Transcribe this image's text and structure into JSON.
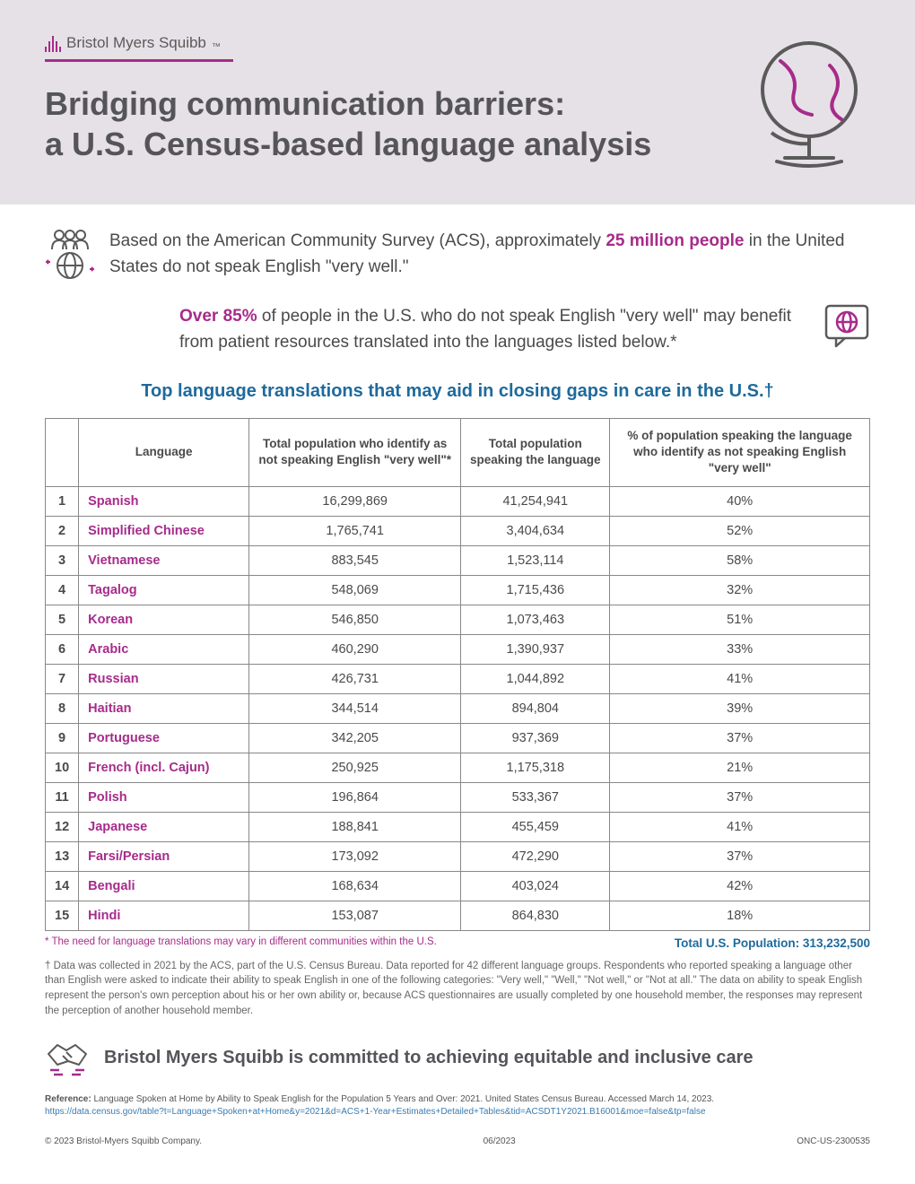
{
  "brand": {
    "name": "Bristol Myers Squibb"
  },
  "title_line1": "Bridging communication barriers:",
  "title_line2": "a U.S. Census-based language analysis",
  "stat1": {
    "pre": "Based on the American Community Survey (ACS), approximately ",
    "hl": "25 million people",
    "post": " in the United States do not speak English \"very well.\""
  },
  "stat2": {
    "hl": "Over 85%",
    "post": " of people in the U.S. who do not speak English \"very well\" may benefit from patient resources translated into the languages listed below.*"
  },
  "table_title": "Top language translations that may aid in closing gaps in care in the U.S.†",
  "columns": {
    "rank": "",
    "language": "Language",
    "not_well": "Total population who identify as not speaking English \"very well\"*",
    "total": "Total population speaking the language",
    "pct": "% of population speaking the language who identify as not speaking English \"very well\""
  },
  "rows": [
    {
      "rank": "1",
      "language": "Spanish",
      "not_well": "16,299,869",
      "total": "41,254,941",
      "pct": "40%"
    },
    {
      "rank": "2",
      "language": "Simplified Chinese",
      "not_well": "1,765,741",
      "total": "3,404,634",
      "pct": "52%"
    },
    {
      "rank": "3",
      "language": "Vietnamese",
      "not_well": "883,545",
      "total": "1,523,114",
      "pct": "58%"
    },
    {
      "rank": "4",
      "language": "Tagalog",
      "not_well": "548,069",
      "total": "1,715,436",
      "pct": "32%"
    },
    {
      "rank": "5",
      "language": "Korean",
      "not_well": "546,850",
      "total": "1,073,463",
      "pct": "51%"
    },
    {
      "rank": "6",
      "language": "Arabic",
      "not_well": "460,290",
      "total": "1,390,937",
      "pct": "33%"
    },
    {
      "rank": "7",
      "language": "Russian",
      "not_well": "426,731",
      "total": "1,044,892",
      "pct": "41%"
    },
    {
      "rank": "8",
      "language": "Haitian",
      "not_well": "344,514",
      "total": "894,804",
      "pct": "39%"
    },
    {
      "rank": "9",
      "language": "Portuguese",
      "not_well": "342,205",
      "total": "937,369",
      "pct": "37%"
    },
    {
      "rank": "10",
      "language": "French (incl. Cajun)",
      "not_well": "250,925",
      "total": "1,175,318",
      "pct": "21%"
    },
    {
      "rank": "11",
      "language": "Polish",
      "not_well": "196,864",
      "total": "533,367",
      "pct": "37%"
    },
    {
      "rank": "12",
      "language": "Japanese",
      "not_well": "188,841",
      "total": "455,459",
      "pct": "41%"
    },
    {
      "rank": "13",
      "language": "Farsi/Persian",
      "not_well": "173,092",
      "total": "472,290",
      "pct": "37%"
    },
    {
      "rank": "14",
      "language": "Bengali",
      "not_well": "168,634",
      "total": "403,024",
      "pct": "42%"
    },
    {
      "rank": "15",
      "language": "Hindi",
      "not_well": "153,087",
      "total": "864,830",
      "pct": "18%"
    }
  ],
  "footnote_left": "* The need for language translations may vary in different communities within the U.S.",
  "footnote_right_label": "Total U.S. Population: ",
  "footnote_right_value": "313,232,500",
  "long_footnote": "† Data was collected in 2021 by the ACS, part of the U.S. Census Bureau. Data reported for 42 different language groups. Respondents who reported speaking a language other than English were asked to indicate their ability to speak English in one of the following categories: \"Very well,\" \"Well,\" \"Not well,\" or \"Not at all.\" The data on ability to speak English represent the person's own perception about his or her own ability or, because ACS questionnaires are usually completed by one household member, the responses may represent the perception of another household member.",
  "commitment": "Bristol Myers Squibb is committed to achieving equitable and inclusive care",
  "reference_label": "Reference:",
  "reference_text": " Language Spoken at Home by Ability to Speak English for the Population 5 Years and Over: 2021. United States Census Bureau. Accessed March 14, 2023.",
  "reference_link": "https://data.census.gov/table?t=Language+Spoken+at+Home&y=2021&d=ACS+1-Year+Estimates+Detailed+Tables&tid=ACSDT1Y2021.B16001&moe=false&tp=false",
  "copyright": "© 2023 Bristol-Myers Squibb Company.",
  "date": "06/2023",
  "doc_code": "ONC-US-2300535",
  "colors": {
    "brand_purple": "#a72b8b",
    "heading_gray": "#54545a",
    "text_gray": "#4a4a4a",
    "table_blue": "#1e6a9c",
    "header_band": "#e6e1e6",
    "border_gray": "#888888"
  }
}
